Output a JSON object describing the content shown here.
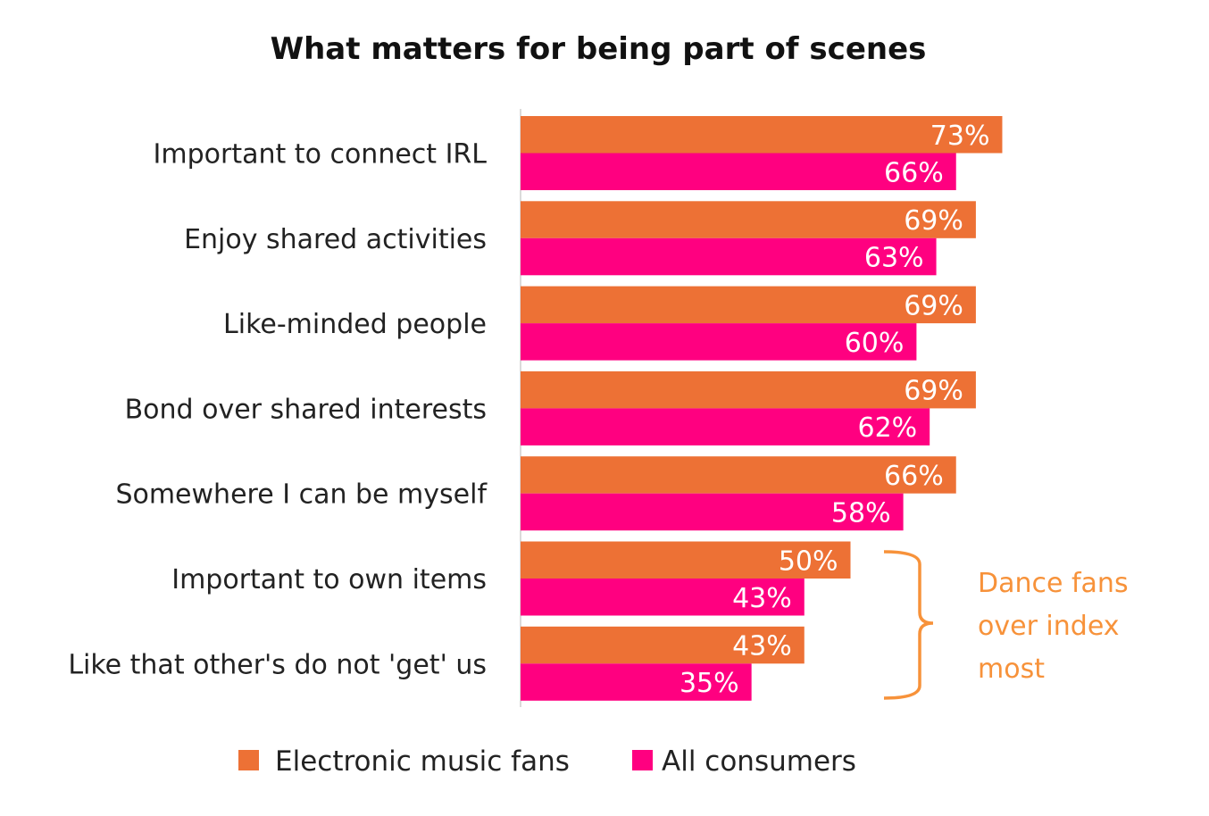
{
  "chart_data": {
    "type": "bar",
    "orientation": "horizontal",
    "title": "What matters for being part of scenes",
    "categories": [
      "Important to connect IRL",
      "Enjoy shared activities",
      "Like-minded people",
      "Bond over shared interests",
      "Somewhere I can be myself",
      "Important to own items",
      "Like that other's do not 'get' us"
    ],
    "series": [
      {
        "name": "Electronic music fans",
        "color": "#ED7135",
        "values": [
          73,
          69,
          69,
          69,
          66,
          50,
          43
        ],
        "labels": [
          "73%",
          "69%",
          "69%",
          "69%",
          "66%",
          "50%",
          "43%"
        ]
      },
      {
        "name": "All consumers",
        "color": "#FF0080",
        "values": [
          66,
          63,
          60,
          62,
          58,
          43,
          35
        ],
        "labels": [
          "66%",
          "63%",
          "60%",
          "62%",
          "58%",
          "43%",
          "35%"
        ]
      }
    ],
    "legend_position": "bottom",
    "grid": false,
    "annotation": {
      "lines": [
        "Dance fans",
        "over index",
        "most"
      ],
      "color": "#F7923A",
      "applies_to": [
        "Important to own items",
        "Like that other's do not 'get' us"
      ]
    }
  }
}
